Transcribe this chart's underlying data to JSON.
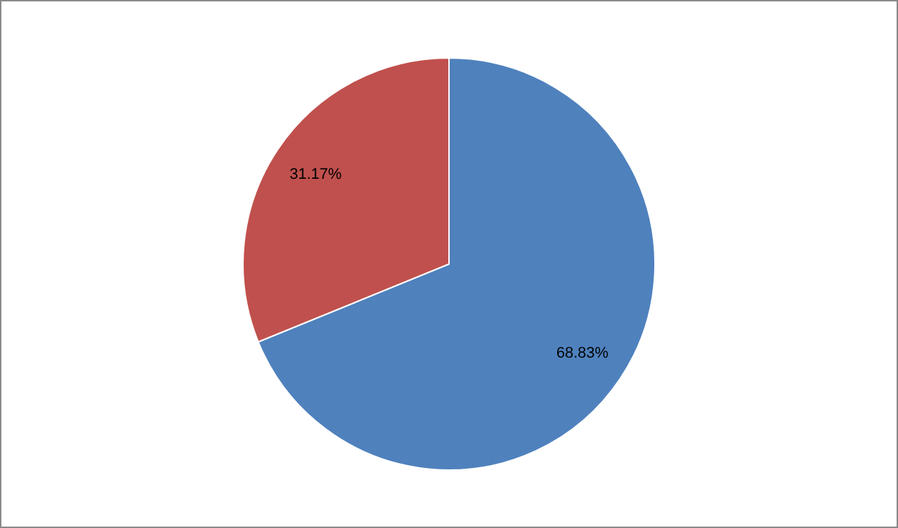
{
  "chart_data": {
    "type": "pie",
    "categories": [
      null,
      null
    ],
    "values": [
      68.83,
      31.17
    ],
    "colors": [
      "#4f81bd",
      "#c0504d"
    ],
    "value_labels": [
      "68.83%",
      "31.17%"
    ],
    "legend": false
  }
}
